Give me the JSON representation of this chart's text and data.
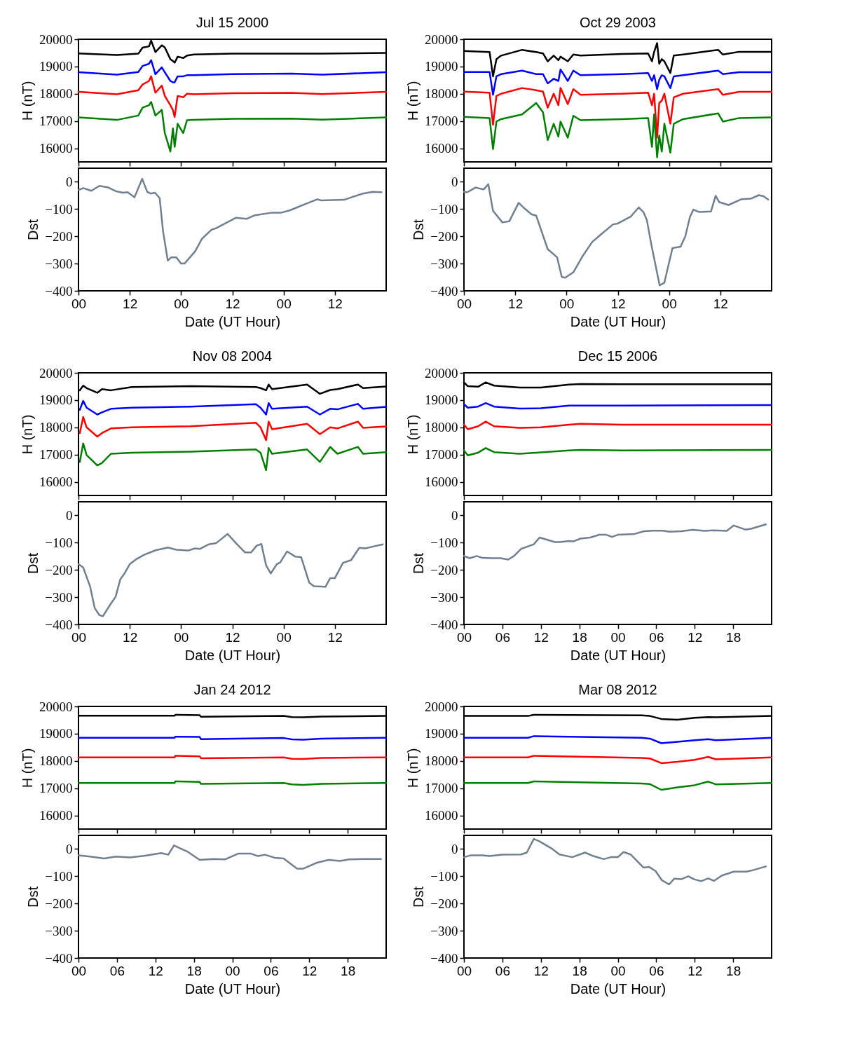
{
  "chart_data": [
    {
      "type": "line",
      "title": "Jul 15 2000",
      "ylabel": "H (nT)",
      "tick_labels": "y",
      "xlim": [
        0,
        72
      ],
      "xticks": [
        0,
        12,
        24,
        36,
        48,
        60
      ],
      "ylim": [
        15500,
        20000
      ],
      "yticks": [
        16000,
        17000,
        18000,
        19000,
        20000
      ],
      "x": [
        0,
        9,
        14,
        15,
        16.5,
        17,
        18,
        19.5,
        20.2,
        21.5,
        22.1,
        22.5,
        23.2,
        24.5,
        25.4,
        27,
        36,
        50,
        57,
        72
      ],
      "series": [
        {
          "color": "#000000",
          "values": [
            19480,
            19420,
            19470,
            19690,
            19740,
            19950,
            19530,
            19780,
            19700,
            19270,
            19200,
            19140,
            19360,
            19310,
            19400,
            19440,
            19470,
            19470,
            19470,
            19500
          ]
        },
        {
          "color": "#0000ff",
          "values": [
            18790,
            18700,
            18800,
            19020,
            19100,
            19230,
            18720,
            18970,
            18790,
            18470,
            18420,
            18420,
            18640,
            18640,
            18680,
            18680,
            18720,
            18740,
            18700,
            18790
          ]
        },
        {
          "color": "#ff0000",
          "values": [
            18070,
            17980,
            18130,
            18340,
            18470,
            18640,
            18040,
            18300,
            17920,
            17580,
            17400,
            17150,
            17920,
            17870,
            18000,
            17980,
            18020,
            18030,
            17990,
            18070
          ]
        },
        {
          "color": "#008000",
          "values": [
            17130,
            17040,
            17200,
            17490,
            17580,
            17700,
            17200,
            17410,
            16560,
            15880,
            16730,
            16050,
            16900,
            16560,
            17030,
            17040,
            17080,
            17090,
            17050,
            17130
          ]
        }
      ]
    },
    {
      "type": "line",
      "xlabel": "Date (UT Hour)",
      "ylabel": "Dst",
      "xlim": [
        0,
        72
      ],
      "xticks": [
        {
          "value": 0,
          "label": "00"
        },
        {
          "value": 12,
          "label": "12"
        },
        {
          "value": 24,
          "label": "00"
        },
        {
          "value": 36,
          "label": "12"
        },
        {
          "value": 48,
          "label": "00"
        },
        {
          "value": 60,
          "label": "12"
        }
      ],
      "ylim": [
        -400,
        50
      ],
      "yticks": [
        {
          "value": -400,
          "label": "−400"
        },
        {
          "value": -300,
          "label": "−300"
        },
        {
          "value": -200,
          "label": "−200"
        },
        {
          "value": -100,
          "label": "−100"
        },
        0
      ],
      "x": [
        0,
        1.1,
        3,
        4.9,
        6.8,
        8.7,
        10.4,
        11.5,
        13.1,
        14.9,
        16.1,
        16.9,
        17.9,
        19,
        19.8,
        20.9,
        21.7,
        22.9,
        24,
        24.8,
        27.3,
        28.9,
        31.1,
        32.2,
        36.8,
        39.3,
        41.2,
        45.3,
        47.5,
        49.4,
        53.5,
        55.9,
        56.7,
        62.2,
        64.4,
        66.6,
        68.8,
        70.9
      ],
      "series": [
        {
          "color": "#708090",
          "values": [
            -30,
            -23,
            -33,
            -15,
            -20,
            -34,
            -40,
            -38,
            -57,
            11,
            -37,
            -43,
            -40,
            -60,
            -183,
            -289,
            -277,
            -277,
            -300,
            -300,
            -255,
            -209,
            -176,
            -170,
            -132,
            -136,
            -123,
            -113,
            -113,
            -105,
            -79,
            -64,
            -68,
            -66,
            -54,
            -43,
            -37,
            -38
          ]
        }
      ]
    },
    {
      "type": "line",
      "title": "Oct 29 2003",
      "ylabel": "H (nT)",
      "tick_labels": "y",
      "xlim": [
        0,
        72
      ],
      "xticks": [
        0,
        12,
        24,
        36,
        48,
        60
      ],
      "ylim": [
        15500,
        20000
      ],
      "yticks": [
        16000,
        17000,
        18000,
        19000,
        20000
      ],
      "x": [
        0,
        6,
        6.8,
        7.6,
        8.7,
        13.6,
        16.9,
        18.5,
        19.6,
        21,
        22.1,
        22.6,
        24.3,
        25.6,
        27.3,
        37.1,
        43.1,
        44,
        44.5,
        45.2,
        45.7,
        46.3,
        46.9,
        48.3,
        49.1,
        51.3,
        59.5,
        60.6,
        64.4,
        72
      ],
      "series": [
        {
          "color": "#000000",
          "values": [
            19570,
            19530,
            18640,
            19270,
            19400,
            19610,
            19530,
            19480,
            19190,
            19400,
            19230,
            19360,
            19190,
            19440,
            19400,
            19460,
            19480,
            19190,
            19530,
            19860,
            19100,
            19270,
            19190,
            18760,
            19400,
            19440,
            19610,
            19440,
            19540,
            19540
          ]
        },
        {
          "color": "#0000ff",
          "values": [
            18800,
            18800,
            17960,
            18640,
            18720,
            18850,
            18720,
            18720,
            18380,
            18550,
            18470,
            18890,
            18470,
            18850,
            18680,
            18720,
            18760,
            18470,
            18680,
            18170,
            18510,
            18680,
            18640,
            18210,
            18640,
            18680,
            18850,
            18720,
            18790,
            18790
          ]
        },
        {
          "color": "#ff0000",
          "values": [
            18080,
            18040,
            16860,
            17920,
            18000,
            18210,
            18130,
            18080,
            17490,
            18000,
            17580,
            18210,
            17620,
            18170,
            17960,
            18000,
            18040,
            17580,
            18000,
            16390,
            17660,
            17750,
            18000,
            16900,
            17870,
            18000,
            18170,
            17960,
            18070,
            18070
          ]
        },
        {
          "color": "#008000",
          "values": [
            17150,
            17110,
            15970,
            16980,
            17070,
            17240,
            17660,
            17320,
            16300,
            16900,
            16430,
            16980,
            16390,
            17190,
            17030,
            17070,
            17110,
            16050,
            17240,
            15670,
            16470,
            15880,
            16900,
            15840,
            16900,
            17070,
            17280,
            16980,
            17110,
            17130
          ]
        }
      ]
    },
    {
      "type": "line",
      "xlabel": "Date (UT Hour)",
      "ylabel": "Dst",
      "xlim": [
        0,
        72
      ],
      "xticks": [
        {
          "value": 0,
          "label": "00"
        },
        {
          "value": 12,
          "label": "12"
        },
        {
          "value": 24,
          "label": "00"
        },
        {
          "value": 36,
          "label": "12"
        },
        {
          "value": 48,
          "label": "00"
        },
        {
          "value": 60,
          "label": "12"
        }
      ],
      "ylim": [
        -400,
        50
      ],
      "yticks": [
        {
          "value": -400,
          "label": "−400"
        },
        {
          "value": -300,
          "label": "−300"
        },
        {
          "value": -200,
          "label": "−200"
        },
        {
          "value": -100,
          "label": "−100"
        },
        0
      ],
      "x": [
        0,
        0.8,
        2.7,
        4.6,
        5.7,
        6.8,
        9,
        10.6,
        12.8,
        14.2,
        15.8,
        16.9,
        19.6,
        21.8,
        22.9,
        23.7,
        25.6,
        27.8,
        30,
        32.2,
        34.9,
        36,
        39,
        40.9,
        42,
        42.8,
        43.9,
        45.8,
        46.9,
        48.8,
        50.7,
        51.8,
        52.9,
        53.7,
        55.1,
        57.8,
        58.9,
        59.7,
        61.9,
        64.9,
        67.1,
        69,
        70.1,
        71.2
      ],
      "series": [
        {
          "color": "#708090",
          "values": [
            -37,
            -38,
            -21,
            -28,
            -9,
            -106,
            -149,
            -145,
            -77,
            -98,
            -119,
            -124,
            -247,
            -277,
            -349,
            -352,
            -332,
            -272,
            -221,
            -191,
            -156,
            -153,
            -128,
            -94,
            -111,
            -140,
            -234,
            -380,
            -370,
            -243,
            -238,
            -200,
            -128,
            -102,
            -111,
            -109,
            -51,
            -74,
            -85,
            -64,
            -62,
            -49,
            -53,
            -65
          ]
        }
      ]
    },
    {
      "type": "line",
      "title": "Nov 08 2004",
      "ylabel": "H (nT)",
      "tick_labels": "y",
      "xlim": [
        0,
        72
      ],
      "xticks": [
        0,
        12,
        24,
        36,
        48,
        60
      ],
      "ylim": [
        15500,
        20000
      ],
      "yticks": [
        16000,
        17000,
        18000,
        19000,
        20000
      ],
      "x": [
        0.3,
        1.1,
        1.9,
        4.4,
        5.5,
        7.6,
        12.5,
        26.2,
        41.5,
        42.6,
        43.9,
        44.5,
        45.3,
        53.5,
        56.5,
        58.9,
        60.6,
        65.4,
        66.6,
        72
      ],
      "series": [
        {
          "color": "#000000",
          "values": [
            19360,
            19530,
            19440,
            19270,
            19400,
            19360,
            19480,
            19510,
            19480,
            19440,
            19360,
            19570,
            19400,
            19570,
            19230,
            19370,
            19400,
            19570,
            19440,
            19500
          ]
        },
        {
          "color": "#0000ff",
          "values": [
            18640,
            18970,
            18720,
            18470,
            18550,
            18680,
            18720,
            18760,
            18850,
            18720,
            18470,
            18890,
            18680,
            18760,
            18470,
            18680,
            18660,
            18860,
            18680,
            18750
          ]
        },
        {
          "color": "#ff0000",
          "values": [
            17790,
            18380,
            18000,
            17660,
            17790,
            17960,
            18000,
            18040,
            18170,
            18000,
            17530,
            18210,
            17930,
            18130,
            17750,
            18000,
            17960,
            18210,
            17980,
            18030
          ]
        },
        {
          "color": "#008000",
          "values": [
            16730,
            17410,
            16980,
            16600,
            16690,
            17030,
            17070,
            17110,
            17190,
            17070,
            16430,
            17240,
            17030,
            17190,
            16730,
            17280,
            17030,
            17280,
            17030,
            17090
          ]
        }
      ]
    },
    {
      "type": "line",
      "xlabel": "Date (UT Hour)",
      "ylabel": "Dst",
      "xlim": [
        0,
        72
      ],
      "xticks": [
        {
          "value": 0,
          "label": "00"
        },
        {
          "value": 12,
          "label": "12"
        },
        {
          "value": 24,
          "label": "00"
        },
        {
          "value": 36,
          "label": "12"
        },
        {
          "value": 48,
          "label": "00"
        },
        {
          "value": 60,
          "label": "12"
        }
      ],
      "ylim": [
        -400,
        50
      ],
      "yticks": [
        {
          "value": -400,
          "label": "−400"
        },
        {
          "value": -300,
          "label": "−300"
        },
        {
          "value": -200,
          "label": "−200"
        },
        {
          "value": -100,
          "label": "−100"
        },
        0
      ],
      "x": [
        0,
        1.1,
        2.7,
        3.8,
        4.9,
        5.7,
        7.4,
        8.7,
        9.8,
        10.6,
        12,
        13.4,
        15.3,
        18,
        21,
        22.9,
        25.6,
        27.3,
        28.4,
        30.5,
        32.2,
        34.9,
        37.1,
        39,
        40.4,
        41.7,
        42.8,
        43.9,
        45,
        46.4,
        47.2,
        48.8,
        50.7,
        52.1,
        54,
        55.1,
        57.8,
        58.9,
        60,
        61.9,
        63.8,
        65.7,
        67.1,
        69.3,
        71.2
      ],
      "series": [
        {
          "color": "#708090",
          "values": [
            -179,
            -191,
            -260,
            -340,
            -366,
            -370,
            -328,
            -298,
            -234,
            -217,
            -179,
            -162,
            -145,
            -128,
            -118,
            -126,
            -129,
            -121,
            -123,
            -106,
            -102,
            -68,
            -106,
            -136,
            -136,
            -111,
            -105,
            -183,
            -213,
            -179,
            -173,
            -132,
            -151,
            -153,
            -247,
            -260,
            -262,
            -230,
            -230,
            -174,
            -164,
            -119,
            -121,
            -113,
            -106
          ]
        }
      ]
    },
    {
      "type": "line",
      "title": "Dec 15 2006",
      "ylabel": "H (nT)",
      "tick_labels": "y",
      "xlim": [
        0,
        48
      ],
      "xticks": [
        0,
        6,
        12,
        18,
        24,
        30,
        36,
        42
      ],
      "ylim": [
        15500,
        20000
      ],
      "yticks": [
        16000,
        17000,
        18000,
        19000,
        20000
      ],
      "x": [
        0,
        0.6,
        2.2,
        3.4,
        4.7,
        8.7,
        12,
        16.4,
        18.2,
        24.8,
        48
      ],
      "series": [
        {
          "color": "#000000",
          "values": [
            19650,
            19510,
            19490,
            19650,
            19530,
            19460,
            19460,
            19570,
            19590,
            19580,
            19580
          ]
        },
        {
          "color": "#0000ff",
          "values": [
            18850,
            18720,
            18760,
            18890,
            18760,
            18690,
            18700,
            18800,
            18800,
            18800,
            18820
          ]
        },
        {
          "color": "#ff0000",
          "values": [
            18100,
            17930,
            18040,
            18210,
            18040,
            17980,
            18000,
            18100,
            18130,
            18100,
            18100
          ]
        },
        {
          "color": "#008000",
          "values": [
            17150,
            16970,
            17070,
            17240,
            17090,
            17030,
            17080,
            17150,
            17170,
            17150,
            17170
          ]
        }
      ]
    },
    {
      "type": "line",
      "xlabel": "Date (UT Hour)",
      "ylabel": "Dst",
      "xlim": [
        0,
        48
      ],
      "xticks": [
        {
          "value": 0,
          "label": "00"
        },
        {
          "value": 6,
          "label": "06"
        },
        {
          "value": 12,
          "label": "12"
        },
        {
          "value": 18,
          "label": "18"
        },
        {
          "value": 24,
          "label": "00"
        },
        {
          "value": 30,
          "label": "06"
        },
        {
          "value": 36,
          "label": "12"
        },
        {
          "value": 42,
          "label": "18"
        }
      ],
      "ylim": [
        -400,
        50
      ],
      "yticks": [
        {
          "value": -400,
          "label": "−400"
        },
        {
          "value": -300,
          "label": "−300"
        },
        {
          "value": -200,
          "label": "−200"
        },
        {
          "value": -100,
          "label": "−100"
        },
        0
      ],
      "x": [
        0,
        0.9,
        2,
        2.9,
        4.4,
        5.8,
        6.9,
        7.8,
        8.9,
        10.9,
        11.8,
        14.2,
        14.9,
        16.4,
        17.1,
        18.2,
        19.7,
        21.1,
        22.2,
        23.1,
        24,
        26.6,
        28.1,
        29.5,
        31,
        32.1,
        33.9,
        35.7,
        37.5,
        39,
        41,
        42.1,
        43.9,
        44.8,
        47.1
      ],
      "series": [
        {
          "color": "#708090",
          "values": [
            -149,
            -157,
            -149,
            -156,
            -157,
            -157,
            -162,
            -149,
            -123,
            -106,
            -81,
            -98,
            -98,
            -94,
            -95,
            -85,
            -81,
            -71,
            -71,
            -79,
            -71,
            -68,
            -58,
            -56,
            -56,
            -60,
            -58,
            -53,
            -57,
            -55,
            -57,
            -37,
            -52,
            -49,
            -33
          ]
        }
      ]
    },
    {
      "type": "line",
      "title": "Jan 24 2012",
      "ylabel": "H (nT)",
      "tick_labels": "y",
      "xlim": [
        0,
        48
      ],
      "xticks": [
        0,
        6,
        12,
        18,
        24,
        30,
        36,
        42
      ],
      "ylim": [
        15500,
        20000
      ],
      "yticks": [
        16000,
        17000,
        18000,
        19000,
        20000
      ],
      "x": [
        0,
        15,
        15.1,
        18.9,
        19.1,
        32,
        33.3,
        35,
        37.9,
        48
      ],
      "series": [
        {
          "color": "#000000",
          "values": [
            19660,
            19660,
            19690,
            19680,
            19620,
            19650,
            19610,
            19600,
            19630,
            19650
          ]
        },
        {
          "color": "#0000ff",
          "values": [
            18850,
            18850,
            18890,
            18880,
            18800,
            18840,
            18790,
            18780,
            18820,
            18850
          ]
        },
        {
          "color": "#ff0000",
          "values": [
            18130,
            18130,
            18190,
            18170,
            18100,
            18130,
            18080,
            18070,
            18110,
            18130
          ]
        },
        {
          "color": "#008000",
          "values": [
            17190,
            17190,
            17250,
            17230,
            17160,
            17190,
            17140,
            17120,
            17160,
            17190
          ]
        }
      ]
    },
    {
      "type": "line",
      "xlabel": "Date (UT Hour)",
      "ylabel": "Dst",
      "xlim": [
        0,
        48
      ],
      "xticks": [
        {
          "value": 0,
          "label": "00"
        },
        {
          "value": 6,
          "label": "06"
        },
        {
          "value": 12,
          "label": "12"
        },
        {
          "value": 18,
          "label": "18"
        },
        {
          "value": 24,
          "label": "00"
        },
        {
          "value": 30,
          "label": "06"
        },
        {
          "value": 36,
          "label": "12"
        },
        {
          "value": 42,
          "label": "18"
        }
      ],
      "ylim": [
        -400,
        50
      ],
      "yticks": [
        {
          "value": -400,
          "label": "−400"
        },
        {
          "value": -300,
          "label": "−300"
        },
        {
          "value": -200,
          "label": "−200"
        },
        {
          "value": -100,
          "label": "−100"
        },
        0
      ],
      "x": [
        0,
        1.8,
        4,
        5.8,
        8,
        10.2,
        12.9,
        14,
        14.9,
        17.1,
        18.9,
        21.1,
        22.9,
        24.9,
        26.9,
        28,
        29.1,
        30.6,
        32,
        34.1,
        35.1,
        37.1,
        39,
        40.8,
        42.2,
        44.4,
        47.2
      ],
      "series": [
        {
          "color": "#708090",
          "values": [
            -23,
            -28,
            -35,
            -28,
            -31,
            -25,
            -15,
            -21,
            13,
            -11,
            -40,
            -37,
            -38,
            -17,
            -17,
            -26,
            -21,
            -32,
            -35,
            -72,
            -72,
            -51,
            -40,
            -44,
            -38,
            -37,
            -37
          ]
        }
      ]
    },
    {
      "type": "line",
      "title": "Mar 08 2012",
      "ylabel": "H (nT)",
      "tick_labels": "y",
      "xlim": [
        0,
        48
      ],
      "xticks": [
        0,
        6,
        12,
        18,
        24,
        30,
        36,
        42
      ],
      "ylim": [
        15500,
        20000
      ],
      "yticks": [
        16000,
        17000,
        18000,
        19000,
        20000
      ],
      "x": [
        0,
        10,
        10.9,
        27.7,
        29,
        30.8,
        33.3,
        36,
        38.1,
        39.3,
        48
      ],
      "series": [
        {
          "color": "#000000",
          "values": [
            19650,
            19650,
            19690,
            19670,
            19650,
            19540,
            19510,
            19580,
            19610,
            19600,
            19650
          ]
        },
        {
          "color": "#0000ff",
          "values": [
            18850,
            18850,
            18910,
            18850,
            18820,
            18650,
            18700,
            18760,
            18800,
            18760,
            18850
          ]
        },
        {
          "color": "#ff0000",
          "values": [
            18130,
            18130,
            18190,
            18110,
            18090,
            17920,
            17970,
            18040,
            18150,
            18060,
            18130
          ]
        },
        {
          "color": "#008000",
          "values": [
            17190,
            17190,
            17250,
            17170,
            17150,
            16940,
            17030,
            17110,
            17240,
            17140,
            17190
          ]
        }
      ]
    },
    {
      "type": "line",
      "xlabel": "Date (UT Hour)",
      "ylabel": "Dst",
      "xlim": [
        0,
        48
      ],
      "xticks": [
        {
          "value": 0,
          "label": "00"
        },
        {
          "value": 6,
          "label": "06"
        },
        {
          "value": 12,
          "label": "12"
        },
        {
          "value": 18,
          "label": "18"
        },
        {
          "value": 24,
          "label": "00"
        },
        {
          "value": 30,
          "label": "06"
        },
        {
          "value": 36,
          "label": "12"
        },
        {
          "value": 42,
          "label": "18"
        }
      ],
      "ylim": [
        -400,
        50
      ],
      "yticks": [
        {
          "value": -400,
          "label": "−400"
        },
        {
          "value": -300,
          "label": "−300"
        },
        {
          "value": -200,
          "label": "−200"
        },
        {
          "value": -100,
          "label": "−100"
        },
        0
      ],
      "x": [
        0,
        1.1,
        2.9,
        4,
        6,
        8.9,
        9.8,
        10.9,
        11.8,
        13.8,
        14.9,
        16.9,
        18.9,
        20.2,
        21.8,
        22.9,
        24,
        24.9,
        26,
        28,
        28.9,
        29.9,
        30.9,
        32,
        32.8,
        33.9,
        35,
        35.9,
        37,
        38.1,
        39,
        40.2,
        42.1,
        44.1,
        45.2,
        47.1
      ],
      "series": [
        {
          "color": "#708090",
          "values": [
            -30,
            -23,
            -23,
            -26,
            -21,
            -20,
            -13,
            37,
            28,
            0,
            -20,
            -30,
            -13,
            -26,
            -37,
            -30,
            -30,
            -11,
            -20,
            -68,
            -66,
            -81,
            -115,
            -130,
            -109,
            -111,
            -100,
            -111,
            -118,
            -108,
            -117,
            -98,
            -83,
            -83,
            -77,
            -64
          ]
        }
      ]
    }
  ]
}
